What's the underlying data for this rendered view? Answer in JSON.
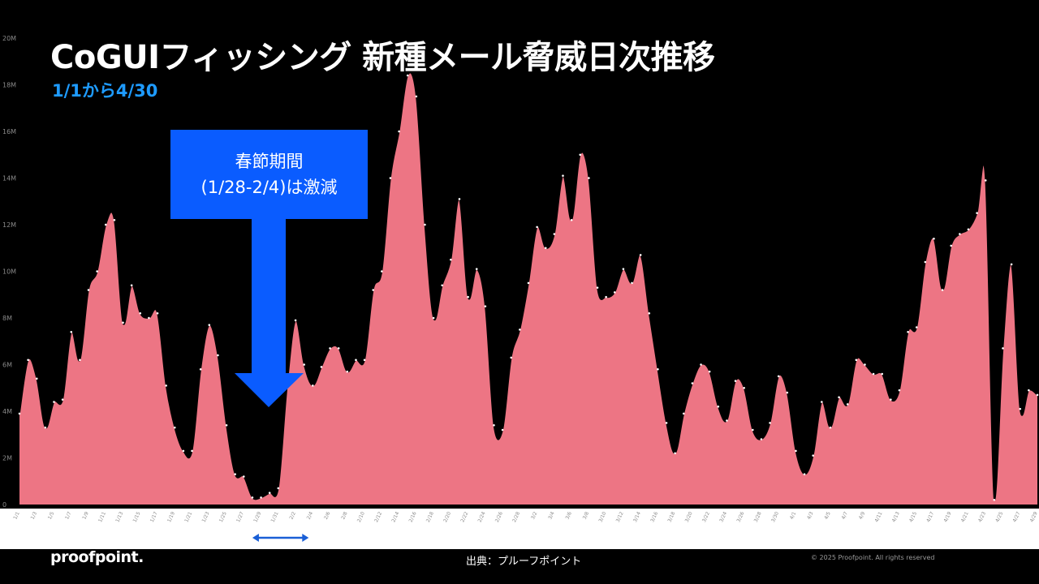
{
  "header": {
    "title": "CoGUIフィッシング 新種メール脅威日次推移",
    "subtitle": "1/1から4/30"
  },
  "callout": {
    "line1": "春節期間",
    "line2": "(1/28-2/4)は激減"
  },
  "footer": {
    "logo": "proofpoint.",
    "source": "出典：プルーフポイント",
    "copyright": "© 2025 Proofpoint. All rights reserved"
  },
  "colors": {
    "background": "#000000",
    "area_fill": "#ed7584",
    "line": "#000000",
    "callout": "#0a5cff",
    "subtitle": "#1e9bff",
    "span_marker": "#1a5fd6"
  },
  "chart_data": {
    "type": "area",
    "x_start": "1/1",
    "x_end": "4/30",
    "x_ticks": [
      "1/1",
      "1/3",
      "1/5",
      "1/7",
      "1/9",
      "1/11",
      "1/13",
      "1/15",
      "1/17",
      "1/19",
      "1/21",
      "1/23",
      "1/25",
      "1/27",
      "1/29",
      "1/31",
      "2/2",
      "2/4",
      "2/6",
      "2/8",
      "2/10",
      "2/12",
      "2/14",
      "2/16",
      "2/18",
      "2/20",
      "2/22",
      "2/24",
      "2/26",
      "2/28",
      "3/2",
      "3/4",
      "3/6",
      "3/8",
      "3/10",
      "3/12",
      "3/14",
      "3/16",
      "3/18",
      "3/20",
      "3/22",
      "3/24",
      "3/26",
      "3/28",
      "3/30",
      "4/1",
      "4/3",
      "4/5",
      "4/7",
      "4/9",
      "4/11",
      "4/13",
      "4/15",
      "4/17",
      "4/19",
      "4/21",
      "4/23",
      "4/25",
      "4/27",
      "4/29"
    ],
    "ylim": [
      0,
      20
    ],
    "y_ticks": [
      "0",
      "2M",
      "4M",
      "6M",
      "8M",
      "10M",
      "12M",
      "14M",
      "16M",
      "18M",
      "20M"
    ],
    "y_unit": "M",
    "values": [
      3.9,
      6.2,
      5.4,
      3.3,
      4.4,
      4.5,
      7.4,
      6.2,
      9.2,
      10.0,
      12.0,
      12.2,
      7.8,
      9.4,
      8.2,
      8.0,
      8.2,
      5.1,
      3.3,
      2.3,
      2.3,
      5.8,
      7.7,
      6.4,
      3.4,
      1.3,
      1.2,
      0.3,
      0.3,
      0.5,
      0.7,
      5.0,
      7.9,
      6.0,
      5.1,
      5.9,
      6.7,
      6.7,
      5.7,
      6.2,
      6.2,
      9.2,
      10.0,
      14.0,
      16.0,
      18.4,
      17.5,
      12.0,
      8.0,
      9.4,
      10.5,
      13.1,
      8.9,
      10.1,
      8.5,
      3.4,
      3.2,
      6.3,
      7.5,
      9.5,
      11.9,
      11.0,
      11.6,
      14.1,
      12.2,
      15.0,
      14.0,
      9.3,
      8.9,
      9.1,
      10.1,
      9.5,
      10.7,
      8.2,
      5.8,
      3.5,
      2.2,
      3.9,
      5.2,
      6.0,
      5.7,
      4.2,
      3.6,
      5.3,
      5.0,
      3.2,
      2.8,
      3.5,
      5.5,
      4.8,
      2.3,
      1.3,
      2.1,
      4.4,
      3.3,
      4.6,
      4.3,
      6.2,
      6.0,
      5.6,
      5.6,
      4.5,
      4.9,
      7.4,
      7.6,
      10.4,
      11.4,
      9.2,
      11.1,
      11.6,
      11.8,
      12.5,
      13.9,
      0.2,
      6.7,
      10.3,
      4.1,
      4.9,
      4.7
    ],
    "highlight_span": [
      "1/28",
      "2/4"
    ]
  }
}
